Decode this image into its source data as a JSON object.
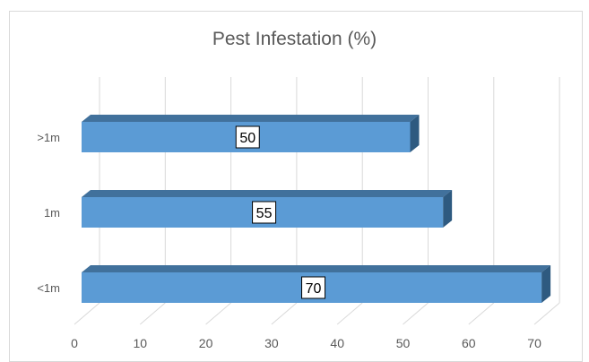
{
  "chart_data": {
    "type": "bar",
    "orientation": "horizontal",
    "style": "3d",
    "title": "Pest Infestation (%)",
    "categories": [
      "<1m",
      "1m",
      ">1m"
    ],
    "values": [
      70,
      55,
      50
    ],
    "data_labels": [
      "70",
      "55",
      "50"
    ],
    "xlim": [
      0,
      70
    ],
    "x_ticks": [
      "0",
      "10",
      "20",
      "30",
      "40",
      "50",
      "60",
      "70"
    ],
    "xlabel": "",
    "ylabel": "",
    "grid": true,
    "legend": "none",
    "colors": {
      "bar_front": "#5b9bd5",
      "bar_top": "#41719c",
      "bar_side": "#2e5a80",
      "grid": "#d9d9d9",
      "text": "#595959"
    }
  }
}
